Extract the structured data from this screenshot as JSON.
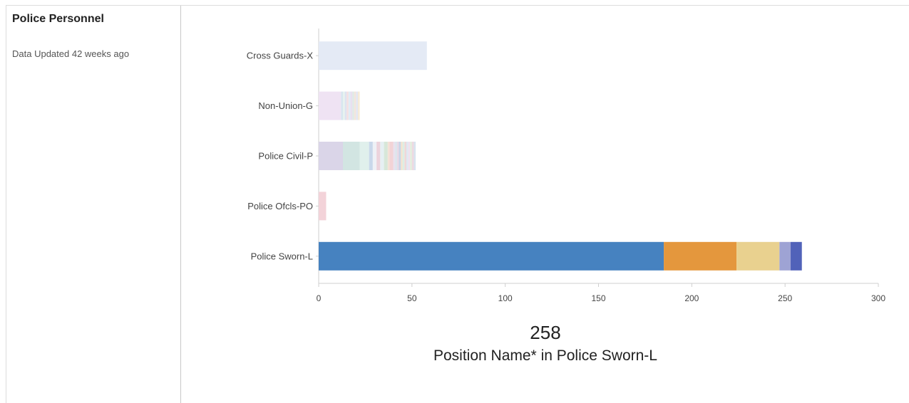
{
  "sidebar": {
    "title": "Police Personnel",
    "updated": "Data Updated 42 weeks ago"
  },
  "flyout": {
    "value": "258",
    "label": "Position Name* in Police Sworn-L"
  },
  "chart_data": {
    "type": "bar",
    "orientation": "horizontal",
    "stacked": true,
    "title": "",
    "xlabel": "",
    "ylabel": "",
    "xlim": [
      0,
      300
    ],
    "x_ticks": [
      "0",
      "50",
      "100",
      "150",
      "200",
      "250",
      "300"
    ],
    "grid": false,
    "categories": [
      {
        "name": "Cross Guards-X",
        "segments": [
          {
            "value": 58,
            "color": "#e4eaf5"
          }
        ]
      },
      {
        "name": "Non-Union-G",
        "segments": [
          {
            "value": 12,
            "color": "#efe3f3"
          },
          {
            "value": 1,
            "color": "#d8e6ef"
          },
          {
            "value": 1,
            "color": "#e7f3ef"
          },
          {
            "value": 1,
            "color": "#dde2f0"
          },
          {
            "value": 1,
            "color": "#f3dfe2"
          },
          {
            "value": 1,
            "color": "#e0ecf4"
          },
          {
            "value": 1,
            "color": "#e9e0f0"
          },
          {
            "value": 1,
            "color": "#dfe9e6"
          },
          {
            "value": 1,
            "color": "#f2e6dc"
          },
          {
            "value": 1,
            "color": "#e3e6f3"
          },
          {
            "value": 1,
            "color": "#f6ebd8"
          }
        ]
      },
      {
        "name": "Police Civil-P",
        "segments": [
          {
            "value": 13,
            "color": "#dad5e8"
          },
          {
            "value": 9,
            "color": "#d2e5e2"
          },
          {
            "value": 5,
            "color": "#e0f0ec"
          },
          {
            "value": 2,
            "color": "#c9d8ea"
          },
          {
            "value": 2,
            "color": "#eef1f6"
          },
          {
            "value": 2,
            "color": "#ecd3dc"
          },
          {
            "value": 2,
            "color": "#e6f0f3"
          },
          {
            "value": 2,
            "color": "#d7e7d9"
          },
          {
            "value": 1,
            "color": "#f4e2d6"
          },
          {
            "value": 2,
            "color": "#f2d3d6"
          },
          {
            "value": 1,
            "color": "#e8e1ee"
          },
          {
            "value": 1,
            "color": "#dbe4ec"
          },
          {
            "value": 1,
            "color": "#e9d9e6"
          },
          {
            "value": 1,
            "color": "#c8d4e8"
          },
          {
            "value": 1,
            "color": "#f1e3cf"
          },
          {
            "value": 1,
            "color": "#dceee4"
          },
          {
            "value": 1,
            "color": "#efd8d8"
          },
          {
            "value": 1,
            "color": "#dfe8f2"
          },
          {
            "value": 1,
            "color": "#f0e0ee"
          },
          {
            "value": 1,
            "color": "#e2eddc"
          },
          {
            "value": 1,
            "color": "#eed9e0"
          },
          {
            "value": 1,
            "color": "#d9e3ef"
          }
        ]
      },
      {
        "name": "Police Ofcls-PO",
        "segments": [
          {
            "value": 4,
            "color": "#f3d3d9"
          }
        ]
      },
      {
        "name": "Police Sworn-L",
        "segments": [
          {
            "value": 185,
            "color": "#4682c0"
          },
          {
            "value": 39,
            "color": "#e4973d"
          },
          {
            "value": 23,
            "color": "#e9d18f"
          },
          {
            "value": 6,
            "color": "#9ea3d4"
          },
          {
            "value": 6,
            "color": "#5162b9"
          }
        ]
      }
    ]
  }
}
